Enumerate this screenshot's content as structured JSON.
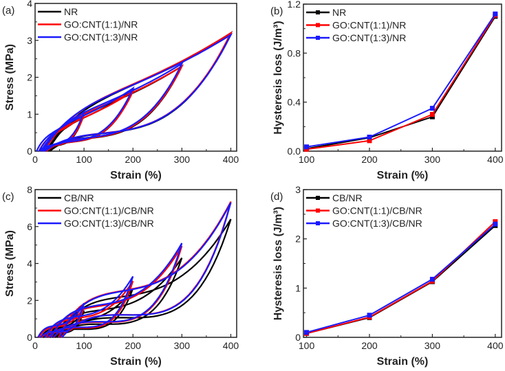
{
  "chart_data": [
    {
      "panel_label": "(a)",
      "type": "line",
      "subtype": "hysteresis-loops",
      "xlabel": "Strain (%)",
      "ylabel": "Stress (MPa)",
      "xlim": [
        0,
        412
      ],
      "ylim": [
        0,
        4
      ],
      "xticks": [
        "0",
        "100",
        "200",
        "300",
        "400"
      ],
      "yticks": [
        "0",
        "1",
        "2",
        "3",
        "4"
      ],
      "legend_position": "top-left",
      "series": [
        {
          "name": "NR",
          "color": "#000000",
          "cycles": [
            {
              "max_strain": 100,
              "peak_stress": 1.0,
              "residual_strain": 15
            },
            {
              "max_strain": 200,
              "peak_stress": 1.65,
              "residual_strain": 18
            },
            {
              "max_strain": 300,
              "peak_stress": 2.3,
              "residual_strain": 22
            },
            {
              "max_strain": 400,
              "peak_stress": 3.2,
              "residual_strain": 25
            }
          ]
        },
        {
          "name": "GO:CNT(1:1)/NR",
          "color": "#ff0000",
          "cycles": [
            {
              "max_strain": 100,
              "peak_stress": 0.98,
              "residual_strain": 8
            },
            {
              "max_strain": 200,
              "peak_stress": 1.62,
              "residual_strain": 12
            },
            {
              "max_strain": 300,
              "peak_stress": 2.3,
              "residual_strain": 15
            },
            {
              "max_strain": 400,
              "peak_stress": 3.2,
              "residual_strain": 18
            }
          ]
        },
        {
          "name": "GO:CNT(1:3)/NR",
          "color": "#1a1aff",
          "cycles": [
            {
              "max_strain": 100,
              "peak_stress": 1.07,
              "residual_strain": 3
            },
            {
              "max_strain": 200,
              "peak_stress": 1.7,
              "residual_strain": 8
            },
            {
              "max_strain": 300,
              "peak_stress": 2.37,
              "residual_strain": 12
            },
            {
              "max_strain": 400,
              "peak_stress": 3.15,
              "residual_strain": 15
            }
          ]
        }
      ]
    },
    {
      "panel_label": "(b)",
      "type": "line",
      "xlabel": "Strain (%)",
      "ylabel": "Hysteresis loss (J/m³)",
      "x": [
        100,
        200,
        300,
        400
      ],
      "xlim": [
        95,
        410
      ],
      "ylim": [
        0,
        1.2
      ],
      "xticks": [
        "100",
        "200",
        "300",
        "400"
      ],
      "yticks": [
        "0.0",
        "0.4",
        "0.8",
        "1.2"
      ],
      "legend_position": "top-left",
      "series": [
        {
          "name": "NR",
          "color": "#000000",
          "values": [
            0.02,
            0.11,
            0.28,
            1.1
          ]
        },
        {
          "name": "GO:CNT(1:1)/NR",
          "color": "#ff0000",
          "values": [
            0.015,
            0.085,
            0.3,
            1.11
          ]
        },
        {
          "name": "GO:CNT(1:3)/NR",
          "color": "#1a1aff",
          "values": [
            0.035,
            0.115,
            0.35,
            1.12
          ]
        }
      ]
    },
    {
      "panel_label": "(c)",
      "type": "line",
      "subtype": "hysteresis-loops",
      "xlabel": "Strain (%)",
      "ylabel": "Stress (MPa)",
      "xlim": [
        0,
        412
      ],
      "ylim": [
        0,
        8
      ],
      "xticks": [
        "0",
        "100",
        "200",
        "300",
        "400"
      ],
      "yticks": [
        "0",
        "2",
        "4",
        "6",
        "8"
      ],
      "legend_position": "top-left",
      "series": [
        {
          "name": "CB/NR",
          "color": "#000000",
          "cycles": [
            {
              "max_strain": 100,
              "peak_stress": 1.45,
              "residual_strain": 12
            },
            {
              "max_strain": 200,
              "peak_stress": 2.65,
              "residual_strain": 25
            },
            {
              "max_strain": 300,
              "peak_stress": 4.3,
              "residual_strain": 35
            },
            {
              "max_strain": 400,
              "peak_stress": 6.4,
              "residual_strain": 45
            }
          ]
        },
        {
          "name": "GO:CNT(1:1)/CB/NR",
          "color": "#ff0000",
          "cycles": [
            {
              "max_strain": 100,
              "peak_stress": 1.65,
              "residual_strain": 8
            },
            {
              "max_strain": 200,
              "peak_stress": 3.05,
              "residual_strain": 22
            },
            {
              "max_strain": 300,
              "peak_stress": 4.95,
              "residual_strain": 33
            },
            {
              "max_strain": 400,
              "peak_stress": 7.35,
              "residual_strain": 48
            }
          ]
        },
        {
          "name": "GO:CNT(1:3)/CB/NR",
          "color": "#1a1aff",
          "cycles": [
            {
              "max_strain": 100,
              "peak_stress": 1.85,
              "residual_strain": 6
            },
            {
              "max_strain": 200,
              "peak_stress": 3.3,
              "residual_strain": 20
            },
            {
              "max_strain": 300,
              "peak_stress": 5.1,
              "residual_strain": 32
            },
            {
              "max_strain": 400,
              "peak_stress": 7.3,
              "residual_strain": 50
            }
          ]
        }
      ]
    },
    {
      "panel_label": "(d)",
      "type": "line",
      "xlabel": "Strain (%)",
      "ylabel": "Hysteresis loss (J/m³)",
      "x": [
        100,
        200,
        300,
        400
      ],
      "xlim": [
        95,
        410
      ],
      "ylim": [
        0,
        3
      ],
      "xticks": [
        "100",
        "200",
        "300",
        "400"
      ],
      "yticks": [
        "0",
        "1",
        "2",
        "3"
      ],
      "legend_position": "top-left",
      "series": [
        {
          "name": "CB/NR",
          "color": "#000000",
          "values": [
            0.08,
            0.4,
            1.13,
            2.27
          ]
        },
        {
          "name": "GO:CNT(1:1)/CB/NR",
          "color": "#ff0000",
          "values": [
            0.08,
            0.41,
            1.14,
            2.35
          ]
        },
        {
          "name": "GO:CNT(1:3)/CB/NR",
          "color": "#1a1aff",
          "values": [
            0.1,
            0.45,
            1.18,
            2.3
          ]
        }
      ]
    }
  ]
}
